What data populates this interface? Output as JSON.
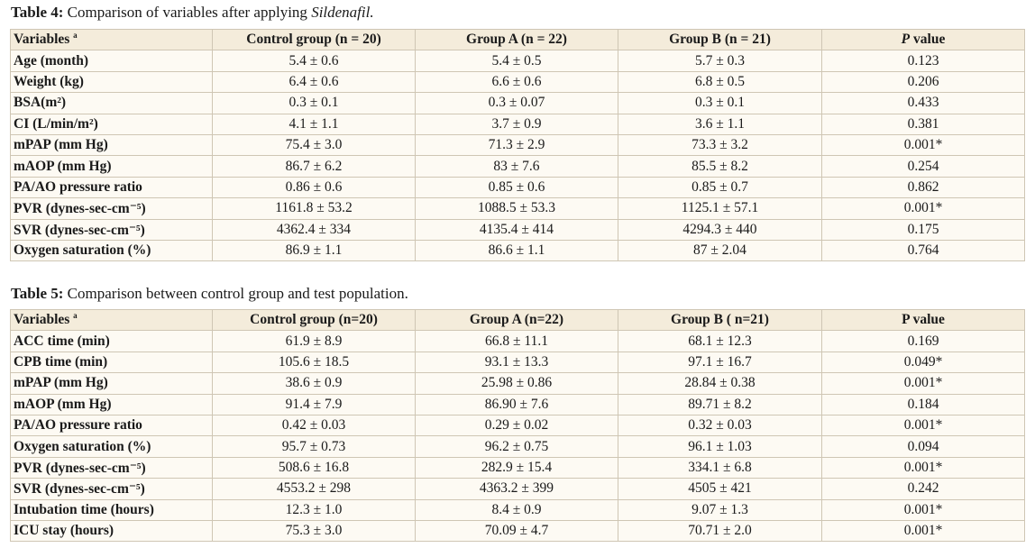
{
  "table4": {
    "caption_label": "Table 4:",
    "caption_text": " Comparison of variables after applying ",
    "caption_italic": "Sildenafil.",
    "headers": [
      "Variables",
      "Control group (n = 20)",
      "Group A (n = 22)",
      "Group B (n = 21)",
      "value"
    ],
    "header_superscript": "a",
    "p_label": "P",
    "rows": [
      [
        "Age (month)",
        "5.4 ± 0.6",
        "5.4 ± 0.5",
        "5.7 ± 0.3",
        "0.123"
      ],
      [
        "Weight (kg)",
        "6.4 ± 0.6",
        "6.6 ± 0.6",
        "6.8 ± 0.5",
        "0.206"
      ],
      [
        "BSA(m²)",
        "0.3 ± 0.1",
        "0.3 ± 0.07",
        "0.3 ± 0.1",
        "0.433"
      ],
      [
        "CI (L/min/m²)",
        "4.1 ± 1.1",
        "3.7 ± 0.9",
        "3.6 ± 1.1",
        "0.381"
      ],
      [
        "mPAP (mm Hg)",
        "75.4 ± 3.0",
        "71.3 ± 2.9",
        "73.3 ± 3.2",
        "0.001*"
      ],
      [
        "mAOP (mm Hg)",
        "86.7 ± 6.2",
        "83 ± 7.6",
        "85.5 ± 8.2",
        "0.254"
      ],
      [
        "PA/AO pressure ratio",
        "0.86 ± 0.6",
        "0.85 ± 0.6",
        "0.85 ± 0.7",
        "0.862"
      ],
      [
        "PVR (dynes-sec-cm⁻⁵)",
        "1161.8 ± 53.2",
        "1088.5 ± 53.3",
        "1125.1 ± 57.1",
        "0.001*"
      ],
      [
        "SVR (dynes-sec-cm⁻⁵)",
        "4362.4 ± 334",
        "4135.4 ± 414",
        "4294.3 ± 440",
        "0.175"
      ],
      [
        "Oxygen saturation (%)",
        "86.9 ± 1.1",
        "86.6 ± 1.1",
        "87 ± 2.04",
        "0.764"
      ]
    ]
  },
  "table5": {
    "caption_label": "Table 5:",
    "caption_text": " Comparison between control group and test population.",
    "headers": [
      "Variables",
      "Control group (n=20)",
      "Group A (n=22)",
      "Group B ( n=21)",
      "P value"
    ],
    "header_superscript": "a",
    "rows": [
      [
        "ACC time (min)",
        "61.9 ± 8.9",
        "66.8 ± 11.1",
        "68.1 ± 12.3",
        "0.169"
      ],
      [
        "CPB time (min)",
        "105.6 ± 18.5",
        "93.1 ± 13.3",
        "97.1 ± 16.7",
        "0.049*"
      ],
      [
        "mPAP (mm Hg)",
        "38.6 ± 0.9",
        "25.98 ± 0.86",
        "28.84 ± 0.38",
        "0.001*"
      ],
      [
        "mAOP (mm Hg)",
        "91.4 ± 7.9",
        "86.90 ± 7.6",
        "89.71 ± 8.2",
        "0.184"
      ],
      [
        "PA/AO pressure ratio",
        "0.42 ± 0.03",
        "0.29 ± 0.02",
        "0.32 ± 0.03",
        "0.001*"
      ],
      [
        "Oxygen saturation (%)",
        "95.7 ± 0.73",
        "96.2 ± 0.75",
        "96.1 ± 1.03",
        "0.094"
      ],
      [
        "PVR (dynes-sec-cm⁻⁵)",
        "508.6 ± 16.8",
        "282.9 ± 15.4",
        "334.1 ± 6.8",
        "0.001*"
      ],
      [
        "SVR (dynes-sec-cm⁻⁵)",
        "4553.2 ± 298",
        "4363.2 ± 399",
        "4505 ± 421",
        "0.242"
      ],
      [
        "Intubation time (hours)",
        "12.3 ± 1.0",
        "8.4 ± 0.9",
        "9.07 ± 1.3",
        "0.001*"
      ],
      [
        "ICU stay (hours)",
        "75.3 ± 3.0",
        "70.09 ± 4.7",
        "70.71 ± 2.0",
        "0.001*"
      ]
    ]
  }
}
